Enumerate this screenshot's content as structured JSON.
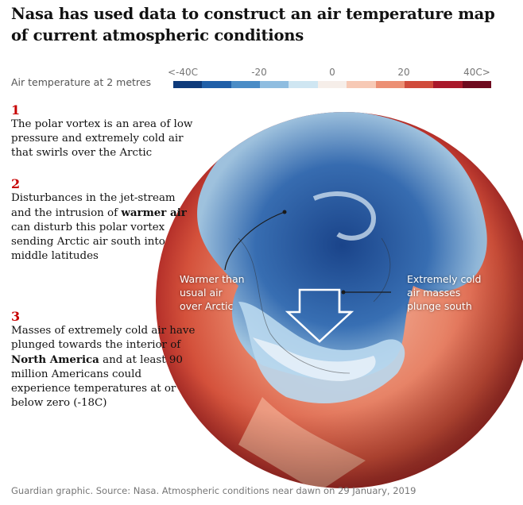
{
  "title": "Nasa has used data to construct an air temperature map of current atmospheric conditions",
  "legend": {
    "label": "Air temperature at 2 metres",
    "ticks": [
      "<-40C",
      "-20",
      "0",
      "20",
      "40C>"
    ],
    "colors": [
      "#0d3a7a",
      "#1f5fa8",
      "#4a8cc6",
      "#8fbde0",
      "#cfe6f2",
      "#f6eee9",
      "#f7c9b5",
      "#ec8f73",
      "#d04b3b",
      "#a9182a",
      "#6e0a1e"
    ]
  },
  "notes": [
    {
      "num": "1",
      "text": "The polar vortex is an area of low pressure and extremely cold air that swirls over the Arctic"
    },
    {
      "num": "2",
      "text_before": "Disturbances in the jet-stream and the intrusion of ",
      "bold": "warmer air",
      "text_after": " can disturb this polar vortex sending Arctic air south into middle latitudes"
    },
    {
      "num": "3",
      "text_before": "Masses of extremely cold air have plunged towards the interior of ",
      "bold": "North America",
      "text_after": " and at least 90 million Americans could experience temperatures at or below zero (-18C)"
    }
  ],
  "callouts": {
    "warmer": [
      "Warmer than",
      "usual air",
      "over Arctic"
    ],
    "cold": [
      "Extremely cold",
      "air masses",
      "plunge south"
    ]
  },
  "footer": "Guardian graphic. Source: Nasa. Atmospheric conditions near dawn on 29 January, 2019",
  "colors": {
    "accent": "#c70000",
    "ocean_warm": "#d9553f",
    "cold_core": "#1a4f9a"
  }
}
